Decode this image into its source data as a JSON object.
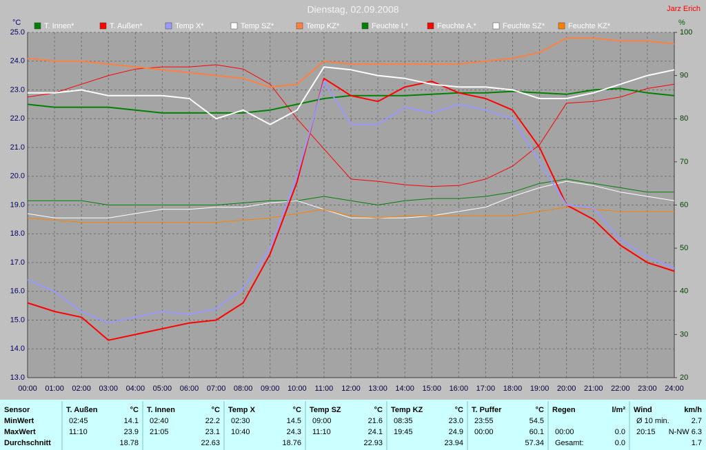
{
  "author": "Jarz Erich",
  "chart_data": {
    "type": "line",
    "title": "Dienstag, 02.09.2008",
    "ylabel": "°C",
    "y2label": "%",
    "categories": [
      "00:00",
      "01:00",
      "02:00",
      "03:00",
      "04:00",
      "05:00",
      "06:00",
      "07:00",
      "08:00",
      "09:00",
      "10:00",
      "11:00",
      "12:00",
      "13:00",
      "14:00",
      "15:00",
      "16:00",
      "17:00",
      "18:00",
      "19:00",
      "20:00",
      "21:00",
      "22:00",
      "23:00",
      "24:00"
    ],
    "ylim": [
      13,
      25
    ],
    "yticks": [
      {
        "value": 13,
        "label": "13.0"
      },
      {
        "value": 14,
        "label": "14.0"
      },
      {
        "value": 15,
        "label": "15.0"
      },
      {
        "value": 16,
        "label": "16.0"
      },
      {
        "value": 17,
        "label": "17.0"
      },
      {
        "value": 18,
        "label": "18.0"
      },
      {
        "value": 19,
        "label": "19.0"
      },
      {
        "value": 20,
        "label": "20.0"
      },
      {
        "value": 21,
        "label": "21.0"
      },
      {
        "value": 22,
        "label": "22.0"
      },
      {
        "value": 23,
        "label": "23.0"
      },
      {
        "value": 24,
        "label": "24.0"
      },
      {
        "value": 25,
        "label": "25.0"
      }
    ],
    "y2lim": [
      20,
      100
    ],
    "y2ticks": [
      20,
      30,
      40,
      50,
      60,
      70,
      80,
      90,
      100
    ],
    "grid": true,
    "series": [
      {
        "name": "T. Innen*",
        "color": "#008000",
        "values": [
          22.5,
          22.4,
          22.4,
          22.4,
          22.3,
          22.2,
          22.2,
          22.2,
          22.2,
          22.3,
          22.5,
          22.7,
          22.8,
          22.8,
          22.8,
          22.85,
          22.9,
          22.9,
          22.95,
          22.9,
          22.85,
          23.0,
          23.05,
          22.9,
          22.8
        ]
      },
      {
        "name": "T. Außen*",
        "color": "#ff0000",
        "values": [
          15.6,
          15.3,
          15.1,
          14.3,
          14.5,
          14.7,
          14.9,
          15.0,
          15.6,
          17.3,
          19.8,
          23.4,
          22.8,
          22.6,
          23.1,
          23.3,
          22.9,
          22.7,
          22.3,
          21.0,
          19.0,
          18.5,
          17.6,
          17.0,
          16.7
        ]
      },
      {
        "name": "Temp X*",
        "color": "#9999ff",
        "values": [
          16.4,
          16.0,
          15.3,
          14.9,
          15.1,
          15.3,
          15.2,
          15.4,
          16.1,
          17.5,
          20.0,
          23.3,
          21.8,
          21.8,
          22.4,
          22.2,
          22.5,
          22.3,
          22.0,
          20.5,
          19.0,
          18.9,
          17.8,
          17.2,
          16.8
        ]
      },
      {
        "name": "Temp SZ*",
        "color": "#ffffff",
        "values": [
          22.9,
          22.9,
          23.0,
          22.8,
          22.8,
          22.8,
          22.7,
          22.0,
          22.3,
          21.8,
          22.3,
          23.8,
          23.7,
          23.5,
          23.4,
          23.2,
          23.1,
          23.1,
          23.0,
          22.7,
          22.7,
          22.9,
          23.2,
          23.5,
          23.7
        ]
      },
      {
        "name": "Temp KZ*",
        "color": "#ff8040",
        "values": [
          24.1,
          24.0,
          24.0,
          23.9,
          23.8,
          23.7,
          23.6,
          23.5,
          23.4,
          23.1,
          23.2,
          24.0,
          23.9,
          23.9,
          23.9,
          23.9,
          23.9,
          24.0,
          24.1,
          24.3,
          24.8,
          24.8,
          24.7,
          24.7,
          24.6
        ]
      },
      {
        "name": "Feuchte I.*",
        "color": "#008000",
        "axis": "y2",
        "values": [
          61,
          61,
          61,
          60,
          60,
          60,
          60,
          60,
          60.5,
          61,
          61,
          62,
          61,
          60,
          61,
          61.5,
          61.5,
          62,
          63,
          65,
          66,
          65,
          64,
          63,
          63
        ]
      },
      {
        "name": "Feuchte A.*",
        "color": "#ff0000",
        "axis": "y2",
        "values": [
          85,
          86,
          88,
          90,
          91.5,
          92,
          92,
          92.5,
          91.5,
          88,
          80,
          73,
          66,
          65.5,
          64.7,
          64.3,
          64.5,
          66,
          69,
          74,
          83.6,
          84,
          85,
          87,
          88
        ]
      },
      {
        "name": "Feuchte SZ*",
        "color": "#ffffff",
        "axis": "y2",
        "values": [
          58,
          57,
          57,
          57,
          58,
          59,
          59,
          59.5,
          59.5,
          60.5,
          61,
          59,
          57,
          57,
          57,
          57.5,
          58.5,
          59.5,
          62,
          64,
          65.5,
          64.5,
          63,
          62,
          61
        ]
      },
      {
        "name": "Feuchte KZ*",
        "color": "#ff8000",
        "axis": "y2",
        "values": [
          57,
          56.5,
          56,
          56,
          56,
          56,
          56,
          56,
          56.5,
          57,
          58,
          59,
          57.5,
          57,
          57.5,
          57.5,
          57.5,
          57.5,
          57.5,
          58.5,
          59.5,
          59,
          58.5,
          58.5,
          58.5
        ]
      }
    ]
  },
  "table": {
    "row_labels": [
      "Sensor",
      "MinWert",
      "MaxWert",
      "Durchschnitt"
    ],
    "groups": [
      {
        "name": "T. Außen",
        "unit": "°C",
        "cells": [
          [
            "02:45",
            "14.1"
          ],
          [
            "11:10",
            "23.9"
          ],
          [
            "18.78"
          ]
        ]
      },
      {
        "name": "T. Innen",
        "unit": "°C",
        "cells": [
          [
            "02:40",
            "22.2"
          ],
          [
            "21:05",
            "23.1"
          ],
          [
            "22.63"
          ]
        ]
      },
      {
        "name": "Temp X",
        "unit": "°C",
        "cells": [
          [
            "02:30",
            "14.5"
          ],
          [
            "10:40",
            "24.3"
          ],
          [
            "18.76"
          ]
        ]
      },
      {
        "name": "Temp SZ",
        "unit": "°C",
        "cells": [
          [
            "09:00",
            "21.6"
          ],
          [
            "11:10",
            "24.1"
          ],
          [
            "22.93"
          ]
        ]
      },
      {
        "name": "Temp KZ",
        "unit": "°C",
        "cells": [
          [
            "08:35",
            "23.0"
          ],
          [
            "19:45",
            "24.9"
          ],
          [
            "23.94"
          ]
        ]
      },
      {
        "name": "T. Puffer",
        "unit": "°C",
        "cells": [
          [
            "23:55",
            "54.5"
          ],
          [
            "00:00",
            "60.1"
          ],
          [
            "57.34"
          ]
        ]
      },
      {
        "name": "Regen",
        "unit": "l/m²",
        "cells": [
          [],
          [
            "00:00",
            "0.0"
          ],
          [
            "Gesamt:",
            "0.0"
          ]
        ]
      },
      {
        "name": "Wind",
        "unit": "km/h",
        "cells": [
          [
            "Ø 10 min.",
            "2.7"
          ],
          [
            "20:15",
            "N-NW 6.3"
          ],
          [
            "1.7"
          ]
        ]
      }
    ]
  }
}
